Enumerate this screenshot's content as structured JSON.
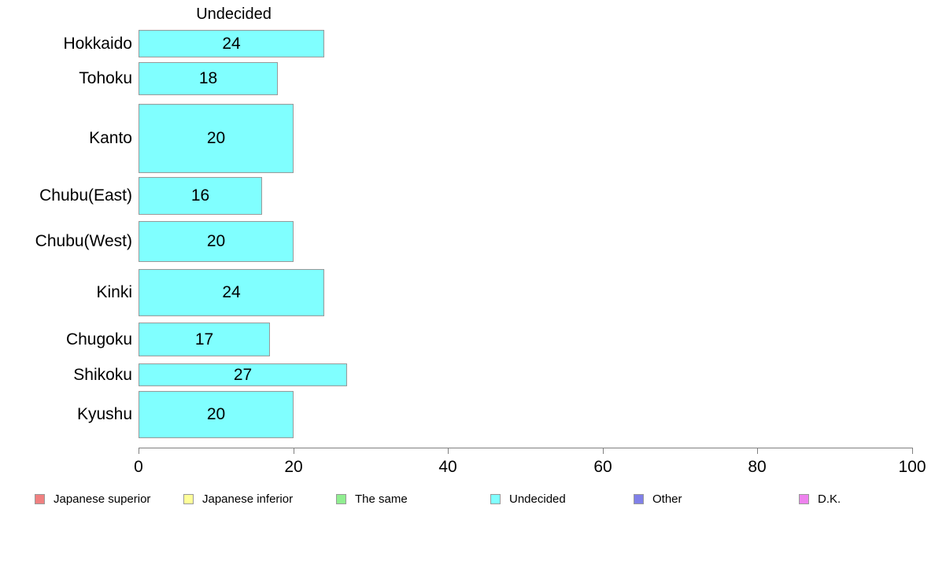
{
  "chart_data": {
    "type": "bar",
    "orientation": "horizontal",
    "title": "Undecided",
    "categories": [
      "Hokkaido",
      "Tohoku",
      "Kanto",
      "Chubu(East)",
      "Chubu(West)",
      "Kinki",
      "Chugoku",
      "Shikoku",
      "Kyushu"
    ],
    "values": [
      24,
      18,
      20,
      16,
      20,
      24,
      17,
      27,
      20
    ],
    "xlabel": "",
    "ylabel": "",
    "xlim": [
      0,
      100
    ],
    "x_ticks": [
      0,
      20,
      40,
      60,
      80,
      100
    ],
    "grid": false,
    "value_labels_shown": true,
    "bar_color": "#80FFFF",
    "bar_border_color": "#999999",
    "row_thickness_px": [
      35,
      42,
      88,
      48,
      52,
      60,
      43,
      29,
      60
    ],
    "legend_position": "bottom",
    "legend": [
      {
        "label": "Japanese superior",
        "color": "#F08080"
      },
      {
        "label": "Japanese inferior",
        "color": "#FFFF99"
      },
      {
        "label": "The same",
        "color": "#90EE90"
      },
      {
        "label": "Undecided",
        "color": "#80FFFF"
      },
      {
        "label": "Other",
        "color": "#8080E8"
      },
      {
        "label": "D.K.",
        "color": "#EE82EE"
      }
    ]
  }
}
